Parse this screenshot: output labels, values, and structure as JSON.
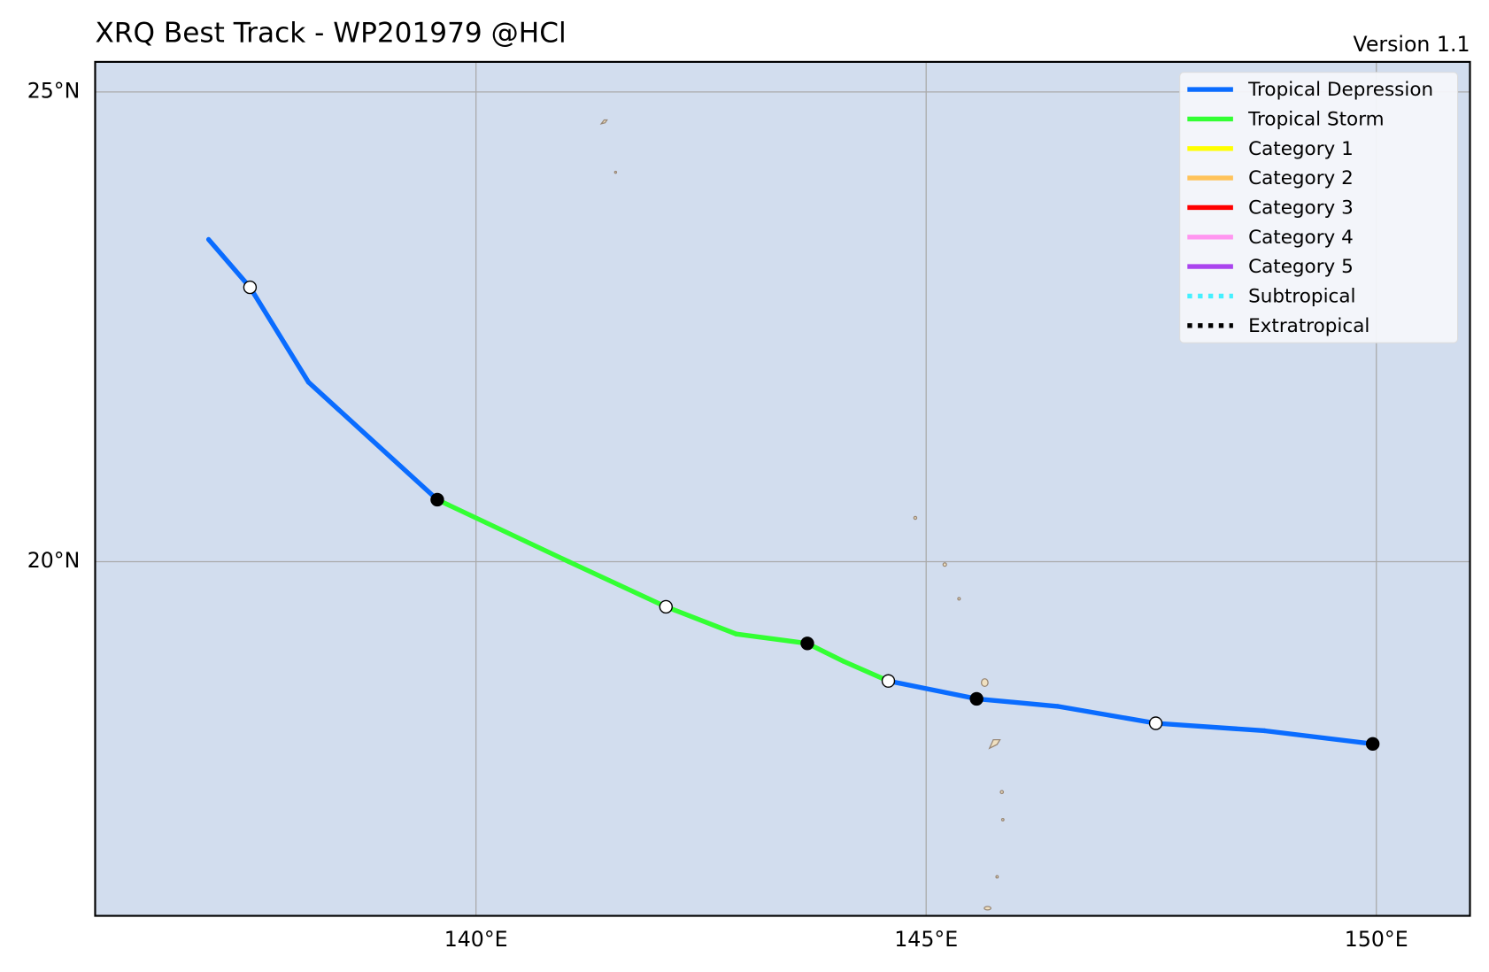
{
  "chart_data": {
    "type": "track",
    "title": "XRQ Best Track - WP201979  @HCl",
    "subtitle": "Version 1.1",
    "xlim": [
      135.77,
      151.04
    ],
    "ylim": [
      16.23,
      25.32
    ],
    "xticks": [
      {
        "value": 140,
        "label": "140°E"
      },
      {
        "value": 145,
        "label": "145°E"
      },
      {
        "value": 150,
        "label": "150°E"
      }
    ],
    "yticks": [
      {
        "value": 20,
        "label": "20°N"
      },
      {
        "value": 25,
        "label": "25°N"
      }
    ],
    "grid": true,
    "legend": [
      {
        "name": "Tropical Depression",
        "color": "#0a6cff",
        "style": "solid"
      },
      {
        "name": "Tropical Storm",
        "color": "#33ff33",
        "style": "solid"
      },
      {
        "name": "Category 1",
        "color": "#ffff00",
        "style": "solid"
      },
      {
        "name": "Category 2",
        "color": "#ffc35a",
        "style": "solid"
      },
      {
        "name": "Category 3",
        "color": "#ff0000",
        "style": "solid"
      },
      {
        "name": "Category 4",
        "color": "#ff96f0",
        "style": "solid"
      },
      {
        "name": "Category 5",
        "color": "#aa44ee",
        "style": "solid"
      },
      {
        "name": "Subtropical",
        "color": "#44f0ff",
        "style": "dotted"
      },
      {
        "name": "Extratropical",
        "color": "#000000",
        "style": "dotted"
      }
    ],
    "legend_position": "upper right",
    "track": {
      "lon": [
        137.03,
        137.49,
        138.14,
        139.57,
        141.03,
        142.11,
        142.89,
        143.68,
        144.08,
        144.58,
        145.56,
        146.46,
        147.55,
        148.76,
        149.96
      ],
      "lat": [
        23.43,
        22.92,
        21.91,
        20.66,
        20.0,
        19.52,
        19.23,
        19.13,
        18.94,
        18.73,
        18.54,
        18.46,
        18.28,
        18.2,
        18.06
      ],
      "stage": [
        0,
        0,
        0,
        1,
        1,
        1,
        1,
        1,
        1,
        0,
        0,
        0,
        0,
        0,
        0
      ],
      "marker": [
        null,
        "open",
        null,
        "filled",
        null,
        "open",
        null,
        "filled",
        null,
        "open",
        "filled",
        null,
        "open",
        null,
        "filled"
      ]
    }
  }
}
